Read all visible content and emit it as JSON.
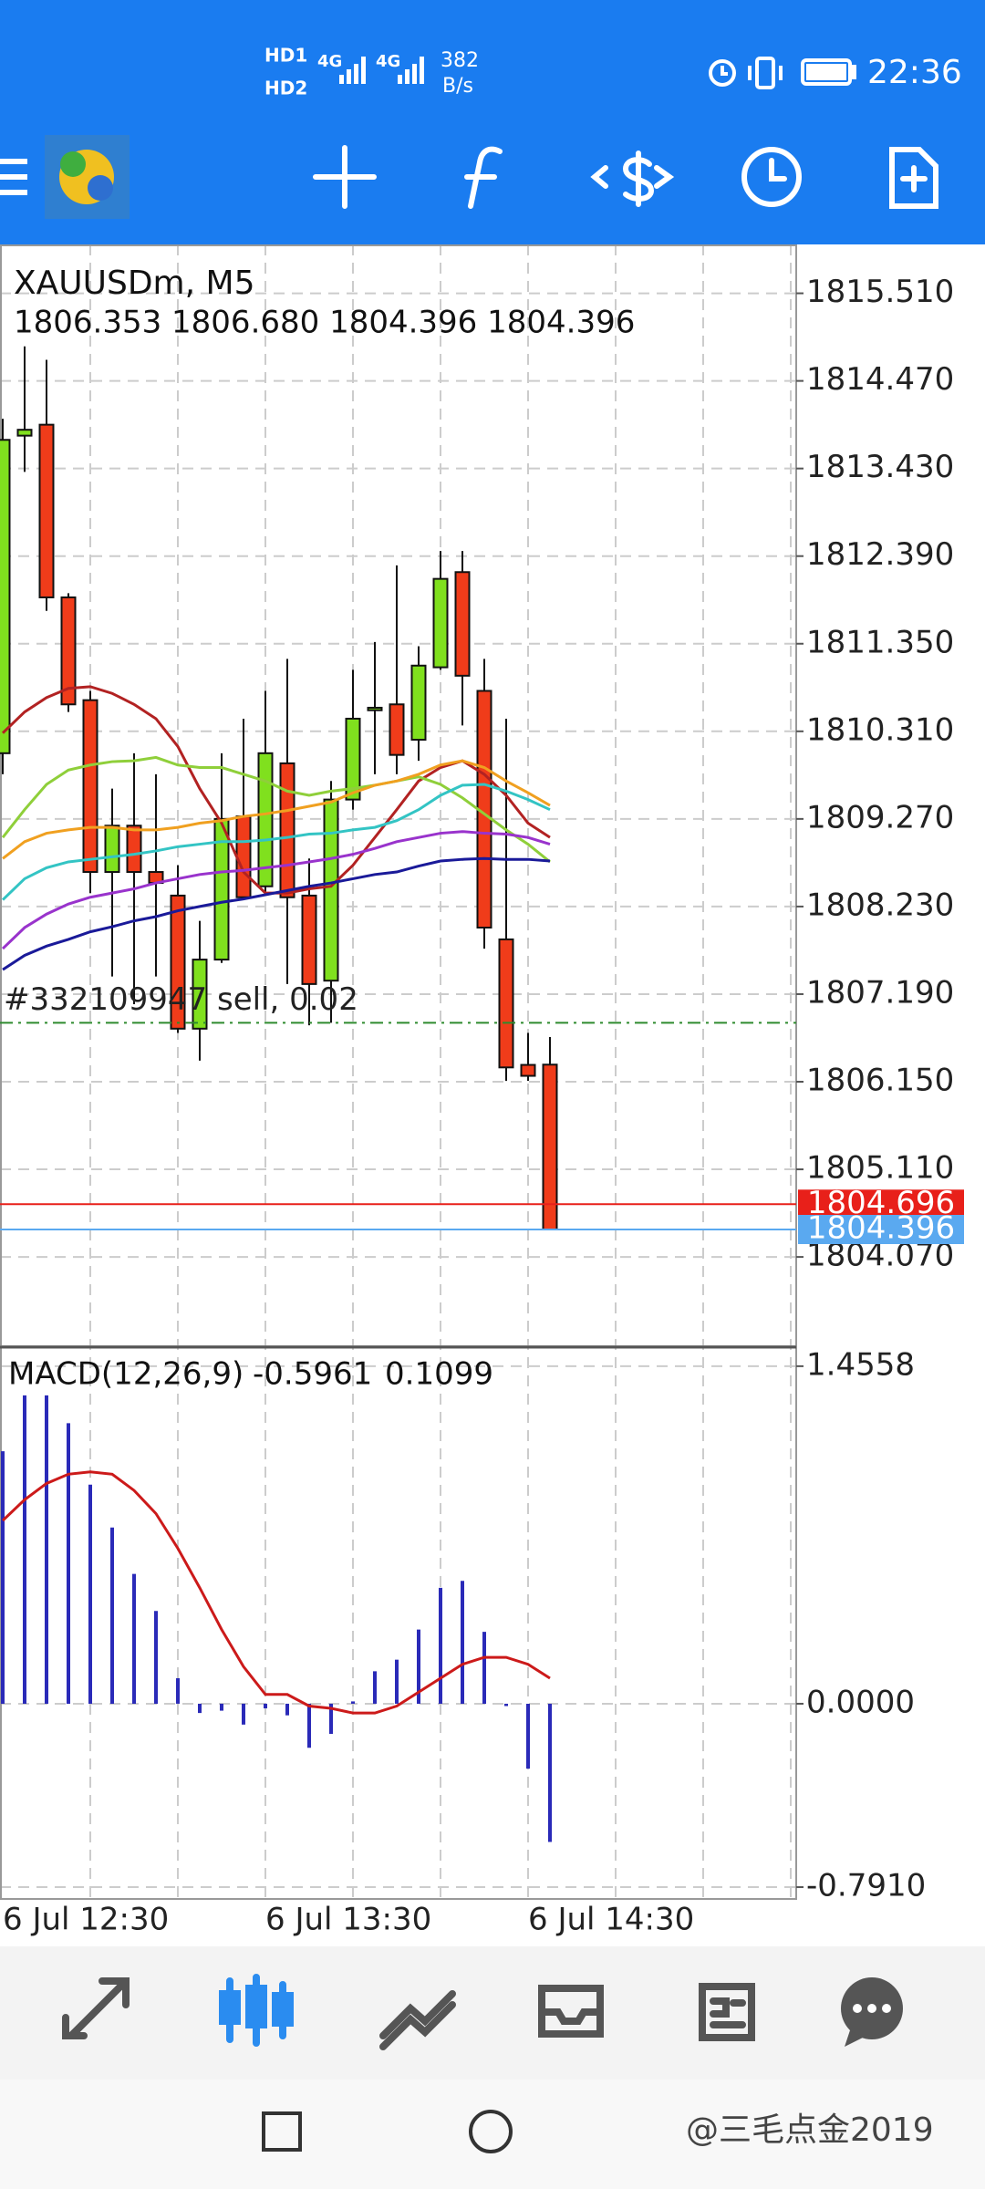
{
  "status_bar": {
    "sim": [
      "HD1",
      "HD2"
    ],
    "network": [
      "4G",
      "4G"
    ],
    "data_rate": "382",
    "data_rate_unit": "B/s",
    "time": "22:36"
  },
  "chart_data": {
    "type": "candlestick",
    "title": "XAUUSDm, M5",
    "quote": "1806.353 1806.680 1804.396 1804.396",
    "categories": [
      "6 Jul 12:30",
      null,
      null,
      null,
      null,
      null,
      null,
      null,
      null,
      null,
      null,
      null,
      "6 Jul 13:30",
      null,
      null,
      null,
      null,
      null,
      null,
      null,
      null,
      null,
      null,
      null,
      "6 Jul 14:30",
      null
    ],
    "open": [
      1810.05,
      1813.82,
      1813.95,
      1811.9,
      1810.68,
      1808.64,
      1809.19,
      1808.64,
      1808.36,
      1806.78,
      1807.6,
      1809.3,
      1808.47,
      1809.93,
      1808.36,
      1807.35,
      1809.5,
      1810.56,
      1810.63,
      1810.21,
      1811.07,
      1812.2,
      1810.79,
      1807.84,
      1806.35,
      1806.353
    ],
    "high": [
      1814.02,
      1814.88,
      1814.72,
      1811.95,
      1810.79,
      1809.63,
      1810.05,
      1809.8,
      1808.72,
      1808.06,
      1810.05,
      1810.46,
      1810.79,
      1811.17,
      1808.8,
      1809.72,
      1811.04,
      1811.37,
      1812.28,
      1811.32,
      1812.45,
      1812.45,
      1811.17,
      1810.46,
      1806.73,
      1806.68
    ],
    "low": [
      1809.8,
      1813.39,
      1811.74,
      1810.54,
      1808.39,
      1807.4,
      1807.07,
      1807.4,
      1806.73,
      1806.4,
      1807.56,
      1808.31,
      1808.39,
      1807.31,
      1806.82,
      1806.85,
      1809.38,
      1809.8,
      1809.8,
      1809.96,
      1811.04,
      1810.38,
      1807.73,
      1806.16,
      1806.16,
      1804.396
    ],
    "close": [
      1813.77,
      1813.89,
      1811.9,
      1810.63,
      1808.64,
      1809.19,
      1808.64,
      1808.51,
      1806.78,
      1807.6,
      1809.27,
      1808.34,
      1810.05,
      1808.34,
      1807.31,
      1809.5,
      1810.46,
      1810.59,
      1810.03,
      1811.09,
      1812.12,
      1810.97,
      1807.98,
      1806.32,
      1806.22,
      1804.396
    ],
    "colors": {
      "up": "#80e01e",
      "down": "#f03c1a"
    },
    "ylim": [
      1803.01,
      1816.09
    ],
    "yticks": [
      {
        "value": 1815.51,
        "label": "1815.510"
      },
      {
        "value": 1814.47,
        "label": "1814.470"
      },
      {
        "value": 1813.43,
        "label": "1813.430"
      },
      {
        "value": 1812.39,
        "label": "1812.390"
      },
      {
        "value": 1811.35,
        "label": "1811.350"
      },
      {
        "value": 1810.31,
        "label": "1810.310"
      },
      {
        "value": 1809.27,
        "label": "1809.270"
      },
      {
        "value": 1808.23,
        "label": "1808.230"
      },
      {
        "value": 1807.19,
        "label": "1807.190"
      },
      {
        "value": 1806.15,
        "label": "1806.150"
      },
      {
        "value": 1805.11,
        "label": "1805.110"
      },
      {
        "value": 1804.07,
        "label": "1804.070"
      }
    ],
    "grid": true,
    "series": [
      {
        "color": "#b22222",
        "values": [
          1810.29,
          1810.54,
          1810.71,
          1810.82,
          1810.84,
          1810.76,
          1810.63,
          1810.46,
          1810.13,
          1809.63,
          1809.22,
          1808.64,
          1808.39,
          1808.39,
          1808.44,
          1808.47,
          1808.72,
          1809.05,
          1809.38,
          1809.72,
          1809.88,
          1809.96,
          1809.8,
          1809.55,
          1809.22,
          1809.05
        ]
      },
      {
        "color": "#8fcf3a",
        "values": [
          1809.05,
          1809.38,
          1809.68,
          1809.85,
          1809.91,
          1809.95,
          1809.96,
          1810.0,
          1809.91,
          1809.88,
          1809.88,
          1809.8,
          1809.72,
          1809.6,
          1809.55,
          1809.6,
          1809.63,
          1809.67,
          1809.72,
          1809.77,
          1809.68,
          1809.52,
          1809.33,
          1809.14,
          1808.97,
          1808.76
        ]
      },
      {
        "color": "#f0a020",
        "values": [
          1808.8,
          1809.0,
          1809.1,
          1809.14,
          1809.17,
          1809.17,
          1809.14,
          1809.14,
          1809.17,
          1809.22,
          1809.25,
          1809.3,
          1809.33,
          1809.37,
          1809.42,
          1809.47,
          1809.58,
          1809.67,
          1809.72,
          1809.8,
          1809.91,
          1809.96,
          1809.88,
          1809.72,
          1809.58,
          1809.43
        ]
      },
      {
        "color": "#33c4c4",
        "values": [
          1808.31,
          1808.56,
          1808.69,
          1808.76,
          1808.79,
          1808.82,
          1808.85,
          1808.89,
          1808.94,
          1808.97,
          1809.0,
          1809.0,
          1809.02,
          1809.05,
          1809.09,
          1809.1,
          1809.14,
          1809.17,
          1809.25,
          1809.38,
          1809.55,
          1809.67,
          1809.68,
          1809.6,
          1809.5,
          1809.38
        ]
      },
      {
        "color": "#9933cc",
        "values": [
          1807.73,
          1807.98,
          1808.14,
          1808.26,
          1808.34,
          1808.39,
          1808.44,
          1808.51,
          1808.56,
          1808.61,
          1808.64,
          1808.66,
          1808.69,
          1808.72,
          1808.76,
          1808.8,
          1808.85,
          1808.92,
          1809.0,
          1809.05,
          1809.1,
          1809.12,
          1809.1,
          1809.09,
          1809.05,
          1808.97
        ]
      },
      {
        "color": "#1a1a99",
        "values": [
          1807.48,
          1807.65,
          1807.76,
          1807.84,
          1807.93,
          1807.99,
          1808.06,
          1808.11,
          1808.18,
          1808.23,
          1808.28,
          1808.32,
          1808.37,
          1808.42,
          1808.47,
          1808.51,
          1808.56,
          1808.61,
          1808.64,
          1808.71,
          1808.77,
          1808.79,
          1808.8,
          1808.79,
          1808.79,
          1808.77
        ]
      }
    ],
    "levels": [
      {
        "label": "#332109947 sell, 0.02",
        "value": 1806.85,
        "color": "#2e8b2e",
        "style": "dashdot"
      },
      {
        "value": 1804.696,
        "color": "#e8201a",
        "tag": true
      },
      {
        "value": 1804.396,
        "color": "#5aa9f0",
        "tag": true
      }
    ],
    "indicator": {
      "type": "macd",
      "title": "MACD(12,26,9)",
      "histogram": [
        1.089,
        1.33,
        1.33,
        1.21,
        0.945,
        0.76,
        0.56,
        0.4,
        0.11,
        -0.04,
        -0.03,
        -0.09,
        -0.02,
        -0.05,
        -0.19,
        -0.13,
        0.01,
        0.14,
        0.19,
        0.32,
        0.5,
        0.53,
        0.31,
        -0.01,
        -0.28,
        -0.5961
      ],
      "signal": [
        0.79,
        0.88,
        0.95,
        0.99,
        1.0,
        0.99,
        0.92,
        0.82,
        0.67,
        0.5,
        0.32,
        0.16,
        0.04,
        0.04,
        -0.01,
        -0.02,
        -0.04,
        -0.04,
        -0.01,
        0.05,
        0.11,
        0.17,
        0.2,
        0.2,
        0.17,
        0.1099
      ],
      "histogram_color": "#2a2ab8",
      "signal_color": "#cc1a1a",
      "ylim": [
        -0.842,
        1.534
      ],
      "yticks": [
        1.4558,
        {
          "value": 0,
          "label": "0.0000"
        },
        {
          "value": -0.791,
          "label": "-0.7910"
        }
      ]
    }
  },
  "watermark": "@三毛点金2019"
}
